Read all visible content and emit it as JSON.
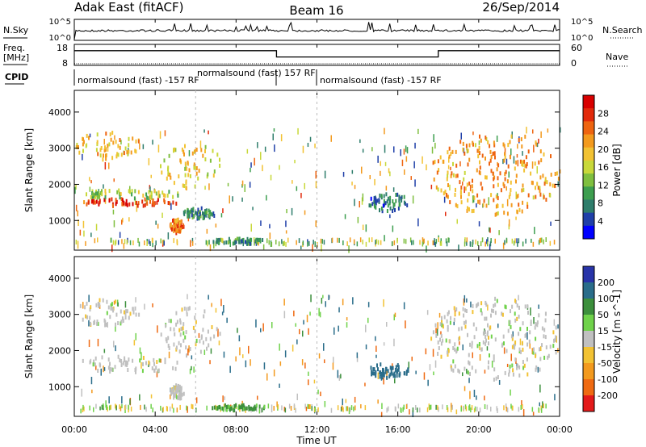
{
  "header": {
    "station": "Adak East (fitACF)",
    "beam": "Beam 16",
    "date": "26/Sep/2014"
  },
  "panels": {
    "nsky_label": "N.Sky",
    "nsearch_label": "N.Search",
    "nsky_ticks": [
      "10^5",
      "10^0"
    ],
    "nsearch_ticks": [
      "10^5",
      "10^0"
    ],
    "freq_label": [
      "Freq.",
      "[MHz]"
    ],
    "freq_ticks": [
      "18",
      "8"
    ],
    "nave_label": "Nave",
    "nave_ticks": [
      "60",
      "0"
    ],
    "cpid_label": "CPID",
    "cpid_segments": [
      {
        "label": "normalsound (fast) -157 RF",
        "start_hour": 0,
        "end_hour": 10
      },
      {
        "label": "normalsound (fast) 157 RF",
        "start_hour": 10,
        "end_hour": 12
      },
      {
        "label": "normalsound (fast) -157 RF",
        "start_hour": 12,
        "end_hour": 24
      }
    ],
    "frequency_steps_mhz": [
      {
        "start_hour": 0,
        "end_hour": 10,
        "value": 15
      },
      {
        "start_hour": 10,
        "end_hour": 18,
        "value": 12
      },
      {
        "start_hour": 18,
        "end_hour": 24,
        "value": 15
      }
    ]
  },
  "axes": {
    "x_label": "Time UT",
    "x_ticks": [
      "00:00",
      "04:00",
      "08:00",
      "12:00",
      "16:00",
      "20:00",
      "00:00"
    ],
    "y_label": "Slant Range [km]",
    "y_ticks": [
      "1000",
      "2000",
      "3000",
      "4000"
    ]
  },
  "colorbars": {
    "power": {
      "label": "Power [dB]",
      "ticks": [
        "4",
        "8",
        "12",
        "16",
        "20",
        "24",
        "28"
      ],
      "colors": [
        "#0000ff",
        "#1f3fa8",
        "#2e7d6b",
        "#3d9e4f",
        "#7fbf3f",
        "#c8d83a",
        "#f2c233",
        "#f39a1e",
        "#ee6410",
        "#e22a0b",
        "#d80000"
      ]
    },
    "velocity": {
      "label": "Velocity [m s^-1]",
      "ticks": [
        "200",
        "100",
        "50",
        "15",
        "-15",
        "-50",
        "-100",
        "-200"
      ],
      "colors": [
        "#2834a8",
        "#2a6d8a",
        "#3c8f3c",
        "#6fd24a",
        "#c0c0c0",
        "#f2c233",
        "#f39a1e",
        "#ef6a12",
        "#e31a1a"
      ]
    }
  },
  "chart_data": [
    {
      "type": "heatmap",
      "title": "Power",
      "xlabel": "Time UT",
      "ylabel": "Slant Range [km]",
      "xlim": [
        0,
        24
      ],
      "ylim": [
        180,
        4600
      ],
      "colorbar": "Power [dB]",
      "color_range": [
        0,
        32
      ],
      "features": [
        {
          "start_hour": 0.0,
          "end_hour": 5.3,
          "range_km_start": 1450,
          "range_km_end": 1650,
          "power_db": 28
        },
        {
          "start_hour": 0.0,
          "end_hour": 5.3,
          "range_km_start": 1650,
          "range_km_end": 1900,
          "power_db": 14
        },
        {
          "start_hour": 0.0,
          "end_hour": 3.3,
          "range_km_start": 2700,
          "range_km_end": 3500,
          "power_db": 20
        },
        {
          "start_hour": 4.2,
          "end_hour": 7.2,
          "range_km_start": 1900,
          "range_km_end": 3300,
          "power_db": 18
        },
        {
          "start_hour": 4.7,
          "end_hour": 5.4,
          "range_km_start": 700,
          "range_km_end": 1100,
          "power_db": 24
        },
        {
          "start_hour": 5.3,
          "end_hour": 7.0,
          "range_km_start": 1100,
          "range_km_end": 1400,
          "power_db": 8
        },
        {
          "start_hour": 6.7,
          "end_hour": 9.5,
          "range_km_start": 400,
          "range_km_end": 550,
          "power_db": 8
        },
        {
          "start_hour": 14.5,
          "end_hour": 16.5,
          "range_km_start": 1300,
          "range_km_end": 1800,
          "power_db": 6
        },
        {
          "start_hour": 17.6,
          "end_hour": 24.0,
          "range_km_start": 1200,
          "range_km_end": 3500,
          "power_db": 22
        }
      ]
    },
    {
      "type": "heatmap",
      "title": "Velocity",
      "xlabel": "Time UT",
      "ylabel": "Slant Range [km]",
      "xlim": [
        0,
        24
      ],
      "ylim": [
        180,
        4600
      ],
      "colorbar": "Velocity [m s^-1]",
      "color_range": [
        -200,
        200
      ],
      "features": [
        {
          "start_hour": 0.0,
          "end_hour": 5.3,
          "range_km_start": 1400,
          "range_km_end": 1900,
          "velocity": 0
        },
        {
          "start_hour": 0.0,
          "end_hour": 3.3,
          "range_km_start": 2700,
          "range_km_end": 3500,
          "velocity": 0
        },
        {
          "start_hour": 4.2,
          "end_hour": 7.2,
          "range_km_start": 1900,
          "range_km_end": 3300,
          "velocity": 0
        },
        {
          "start_hour": 4.7,
          "end_hour": 5.4,
          "range_km_start": 700,
          "range_km_end": 1100,
          "velocity": 0
        },
        {
          "start_hour": 6.7,
          "end_hour": 9.5,
          "range_km_start": 400,
          "range_km_end": 550,
          "velocity": 60
        },
        {
          "start_hour": 14.5,
          "end_hour": 16.5,
          "range_km_start": 1300,
          "range_km_end": 1700,
          "velocity": 150
        },
        {
          "start_hour": 17.6,
          "end_hour": 24.0,
          "range_km_start": 1200,
          "range_km_end": 3500,
          "velocity": 0
        }
      ]
    }
  ]
}
